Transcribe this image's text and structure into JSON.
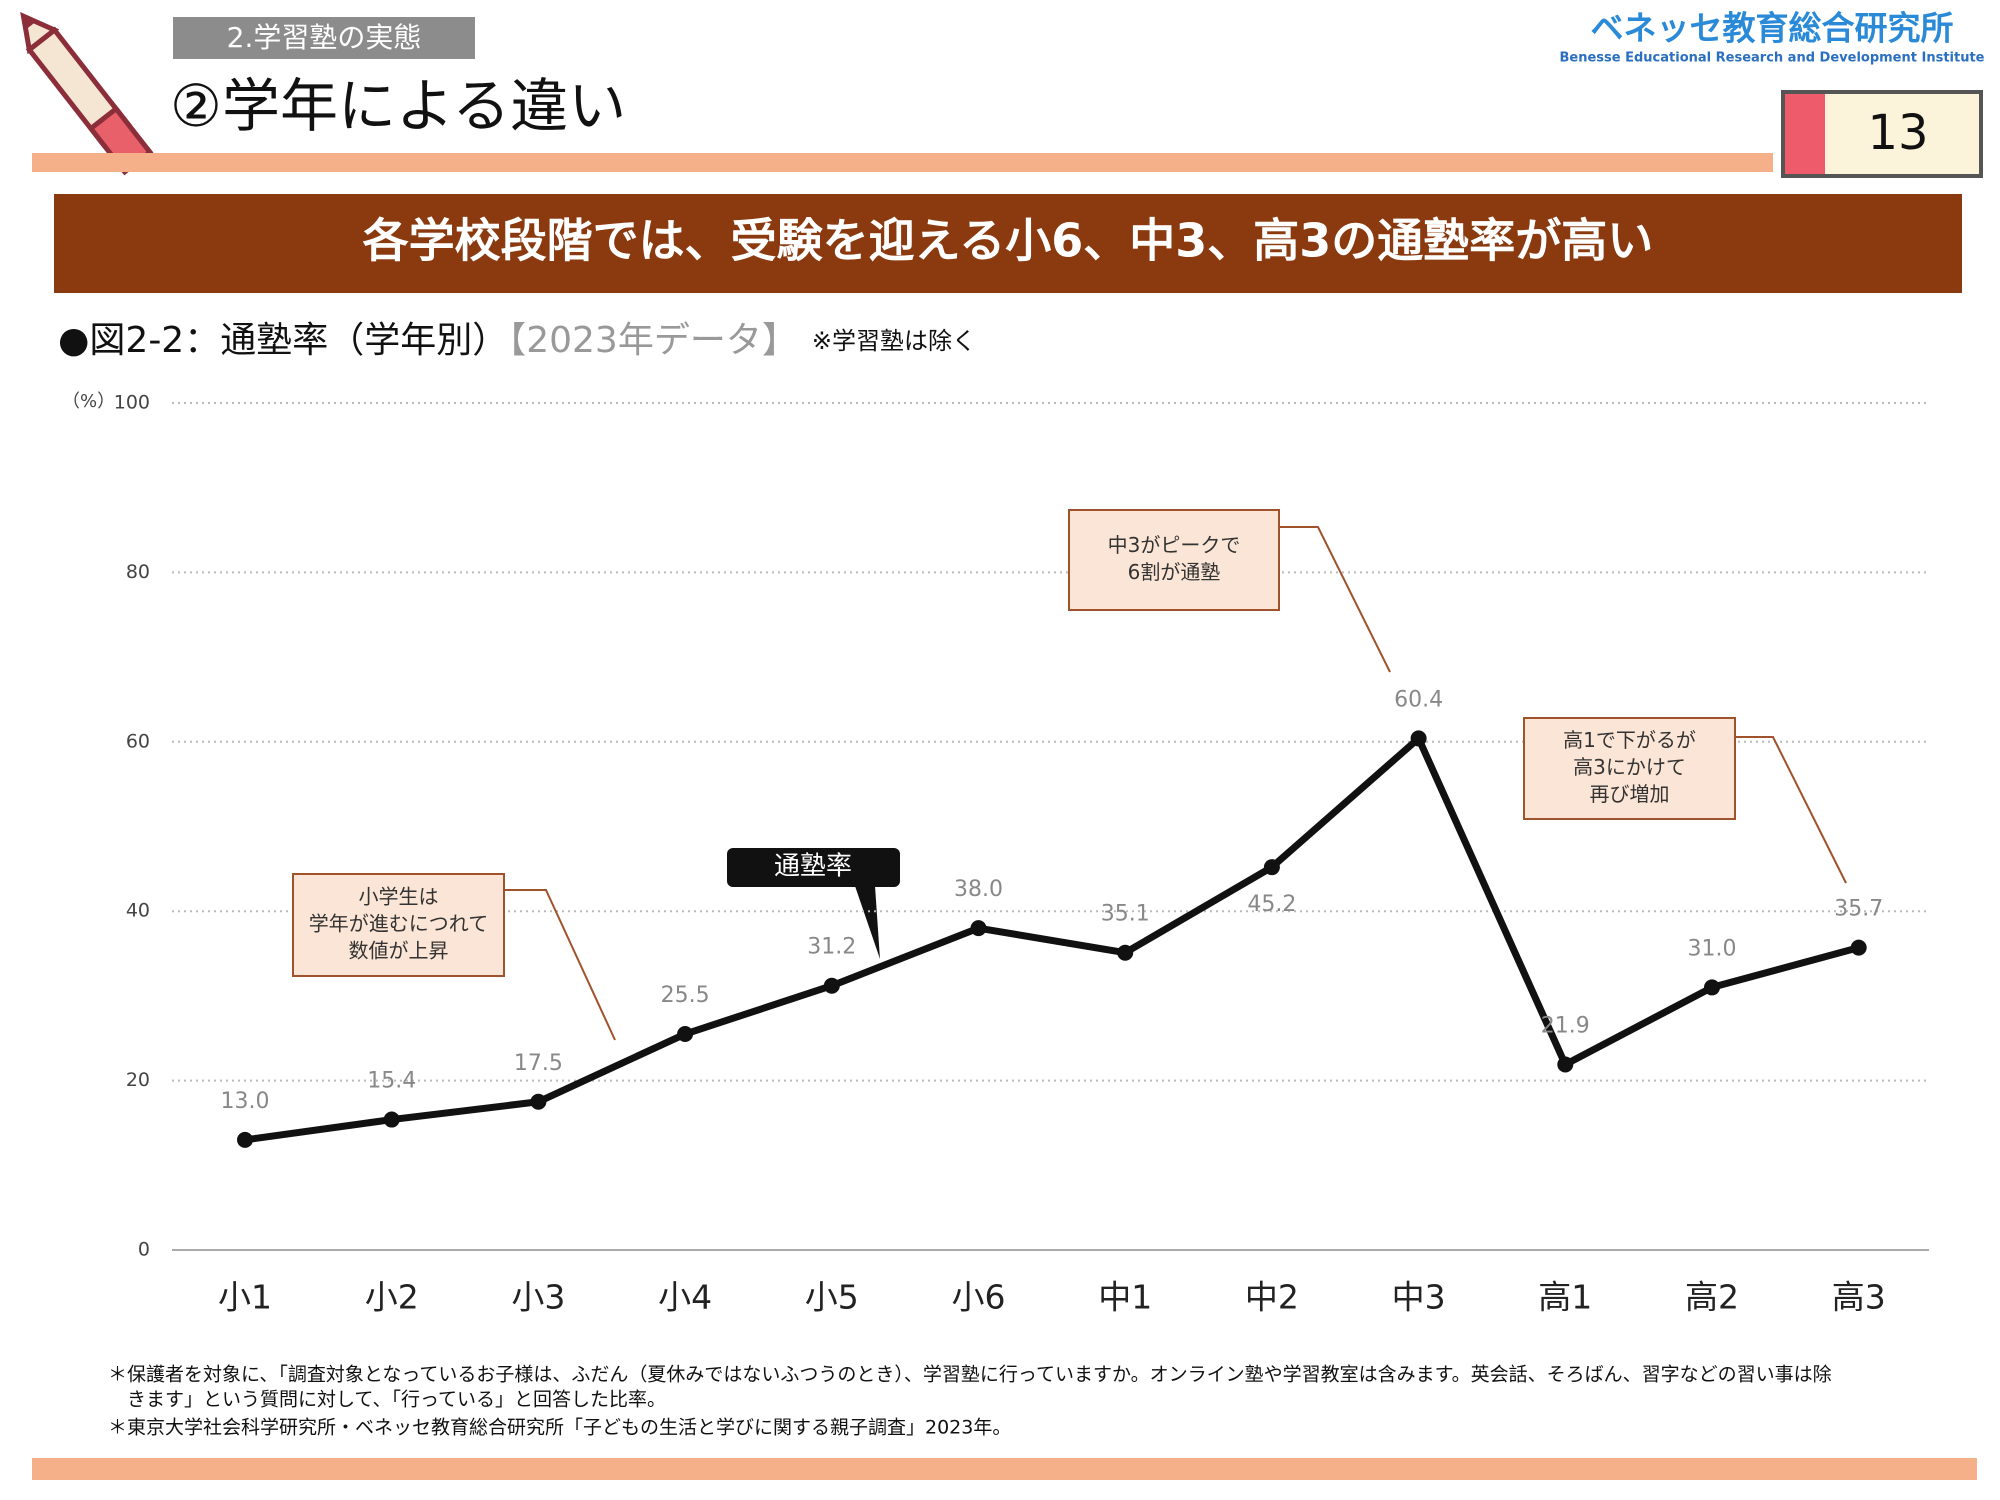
{
  "header": {
    "section": "2.学習塾の実態",
    "title": "②学年による違い",
    "logo": "ベネッセ教育総合研究所",
    "logo_en": "Benesse  Educational Research and Development Institute",
    "page": "13"
  },
  "banner": "各学校段階では、受験を迎える小6、中3、高3の通塾率が高い",
  "chart_data": {
    "type": "line",
    "title": "●図2-2：通塾率（学年別）",
    "subtitle": "【2023年データ】",
    "note": "※学習塾は除く",
    "y_unit": "（%）",
    "categories": [
      "小1",
      "小2",
      "小3",
      "小4",
      "小5",
      "小6",
      "中1",
      "中2",
      "中3",
      "高1",
      "高2",
      "高3"
    ],
    "series": [
      {
        "name": "通塾率",
        "color": "#111111",
        "values": [
          13,
          15.4,
          17.5,
          25.5,
          31.2,
          38,
          35.1,
          45.2,
          60.4,
          21.9,
          31,
          35.7
        ],
        "value_labels": [
          "13.0",
          "15.4",
          "17.5",
          "25.5",
          "31.2",
          "38.0",
          "35.1",
          "45.2",
          "60.4",
          "21.9",
          "31.0",
          "35.7"
        ]
      }
    ],
    "ylim": [
      0,
      100
    ],
    "yticks": [
      0,
      20,
      40,
      60,
      80,
      100
    ],
    "grid": true,
    "annotations": [
      {
        "lines": [
          "小学生は",
          "学年が進むにつれて",
          "数値が上昇"
        ]
      },
      {
        "lines": [
          "中3がピークで",
          "6割が通塾"
        ]
      },
      {
        "lines": [
          "高1で下がるが",
          "高3にかけて",
          "再び増加"
        ]
      }
    ]
  },
  "footnotes": [
    "＊保護者を対象に、「調査対象となっているお子様は、ふだん（夏休みではないふつうのとき）、学習塾に行っていますか。オンライン塾や学習教室は含みます。英会話、そろばん、習字などの習い事は除",
    "　きます」という質問に対して、「行っている」と回答した比率。",
    "＊東京大学社会科学研究所・ベネッセ教育総合研究所「子どもの生活と学びに関する親子調査」2023年。"
  ]
}
